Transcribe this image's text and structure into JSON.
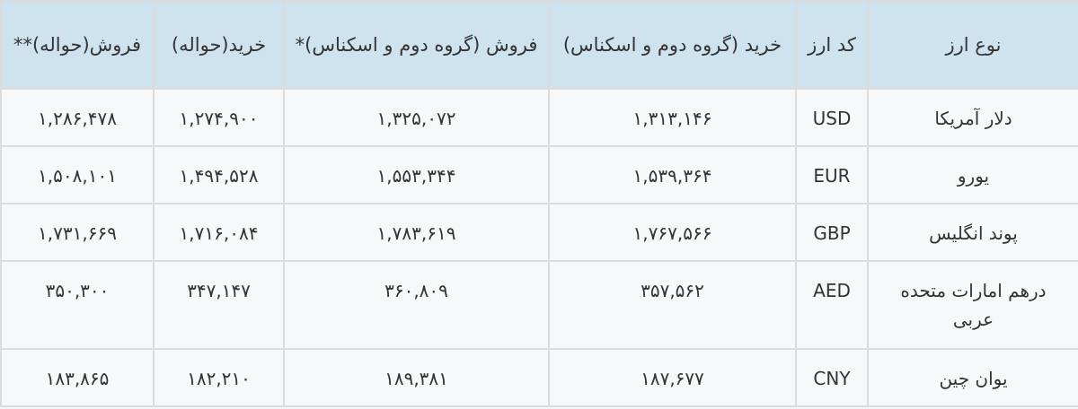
{
  "headers": [
    "نوع ارز",
    "کد ارز",
    "خرید (گروه دوم و اسکناس)",
    "فروش (گروه دوم و اسکناس)*",
    "خرید(حواله)",
    "فروش(حواله)**"
  ],
  "rows": [
    [
      "دلار آمریکا",
      "USD",
      "۱,۳۱۳,۱۴۶",
      "۱,۳۲۵,۰۷۲",
      "۱,۲۷۴,۹۰۰",
      "۱,۲۸۶,۴۷۸"
    ],
    [
      "یورو",
      "EUR",
      "۱,۵۳۹,۳۶۴",
      "۱,۵۵۳,۳۴۴",
      "۱,۴۹۴,۵۲۸",
      "۱,۵۰۸,۱۰۱"
    ],
    [
      "پوند انگلیس",
      "GBP",
      "۱,۷۶۷,۵۶۶",
      "۱,۷۸۳,۶۱۹",
      "۱,۷۱۶,۰۸۴",
      "۱,۷۳۱,۶۶۹"
    ],
    [
      "درهم امارات متحده عربی",
      "AED",
      "۳۵۷,۵۶۲",
      "۳۶۰,۸۰۹",
      "۳۴۷,۱۴۷",
      "۳۵۰,۳۰۰"
    ],
    [
      "یوان چین",
      "CNY",
      "۱۸۷,۶۷۷",
      "۱۸۹,۳۸۱",
      "۱۸۲,۲۱۰",
      "۱۸۳,۸۶۵"
    ]
  ]
}
